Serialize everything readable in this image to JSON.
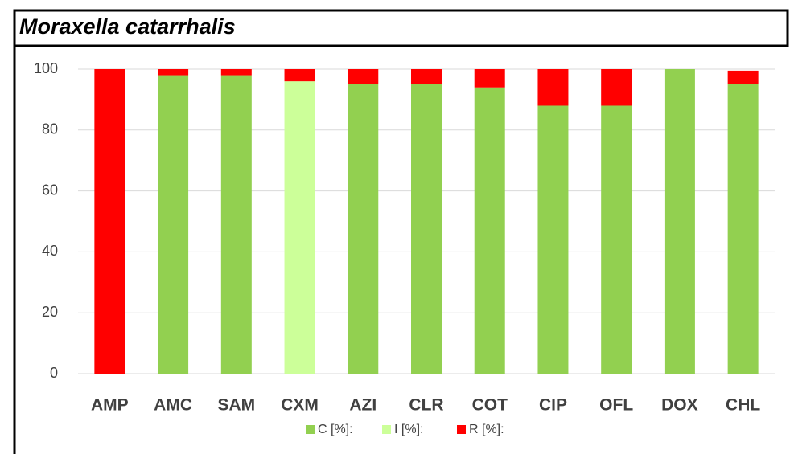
{
  "chart_data": {
    "type": "stacked_bar",
    "title": "Moraxella catarrhalis",
    "categories": [
      "AMP",
      "AMC",
      "SAM",
      "CXM",
      "AZI",
      "CLR",
      "COT",
      "CIP",
      "OFL",
      "DOX",
      "CHL"
    ],
    "series": [
      {
        "name": "C [%]:",
        "color": "#92d050",
        "values": [
          0,
          98,
          98,
          0,
          95,
          95,
          94,
          88,
          88,
          100,
          95
        ]
      },
      {
        "name": "I [%]:",
        "color": "#ccff99",
        "values": [
          0,
          0,
          0,
          96,
          0,
          0,
          0,
          0,
          0,
          0,
          0
        ]
      },
      {
        "name": "R [%]:",
        "color": "#ff0000",
        "values": [
          100,
          2,
          2,
          4,
          5,
          5,
          6,
          12,
          12,
          0,
          4.5
        ]
      }
    ],
    "ylim": [
      0,
      100
    ],
    "yticks": [
      0,
      20,
      40,
      60,
      80,
      100
    ],
    "grid": true,
    "legend": "bottom"
  }
}
